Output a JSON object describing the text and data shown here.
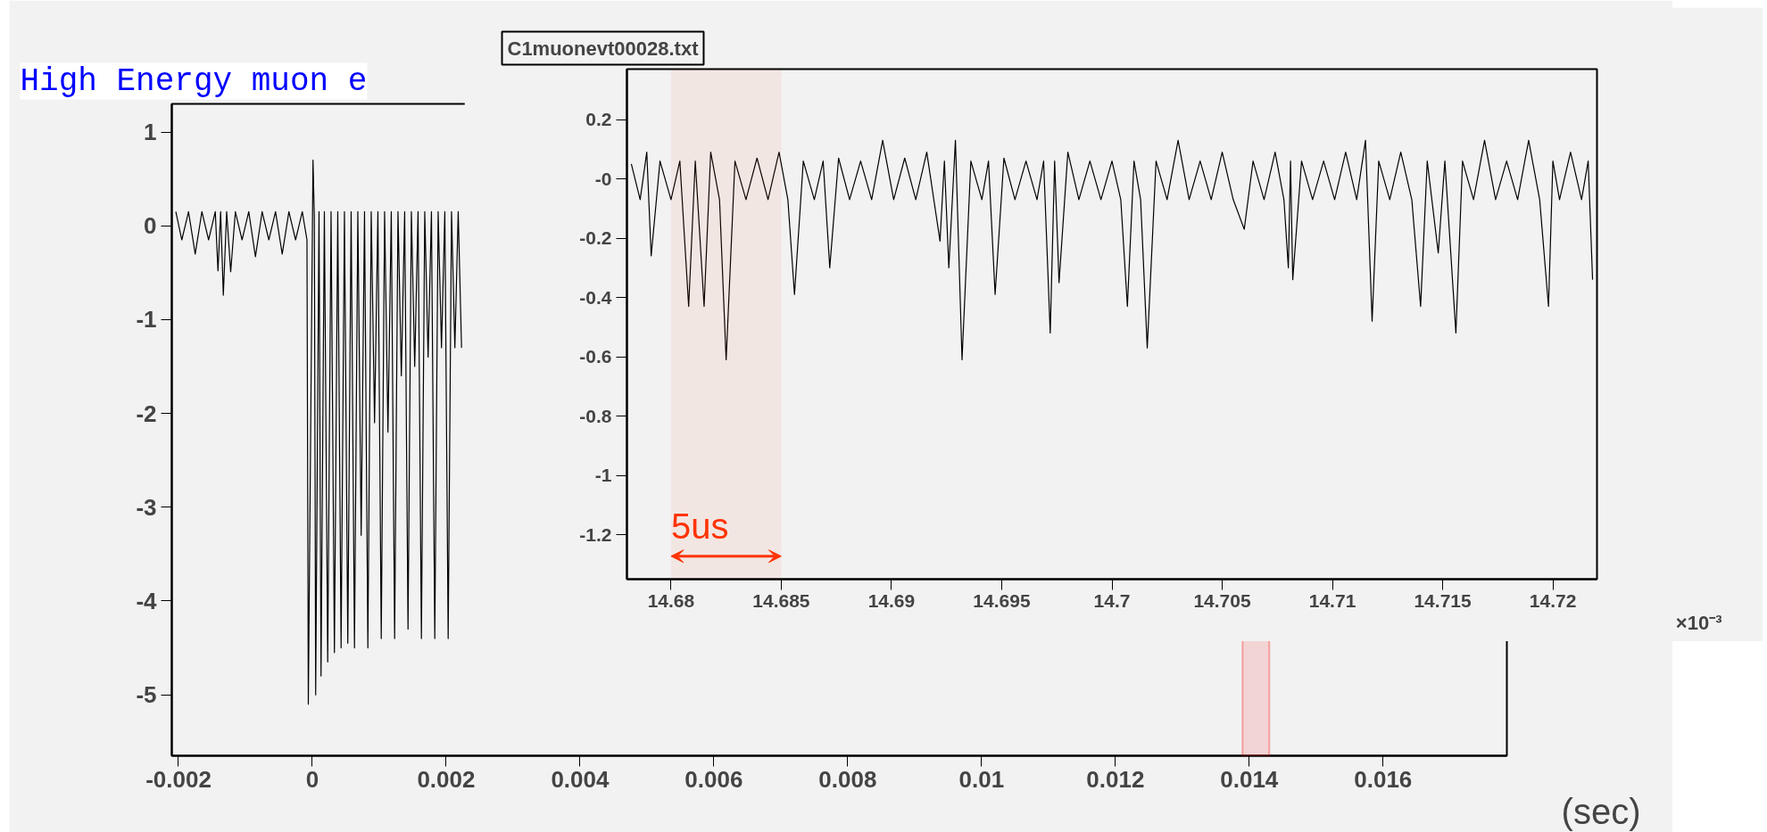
{
  "chart_data": [
    {
      "type": "line",
      "title": "High Energy muon e",
      "xlabel": "(sec)",
      "grid": false,
      "xlim": [
        -0.0021,
        0.01785
      ],
      "ylim": [
        -5.65,
        1.3
      ],
      "xticks": [
        {
          "value": -0.002,
          "label": "-0.002"
        },
        0,
        {
          "value": 0.002,
          "label": "0.002"
        },
        {
          "value": 0.004,
          "label": "0.004"
        },
        {
          "value": 0.006,
          "label": "0.006"
        },
        {
          "value": 0.008,
          "label": "0.008"
        },
        {
          "value": 0.01,
          "label": "0.01"
        },
        {
          "value": 0.012,
          "label": "0.012"
        },
        {
          "value": 0.014,
          "label": "0.014"
        },
        {
          "value": 0.016,
          "label": "0.016"
        }
      ],
      "yticks": [
        1,
        0,
        -1,
        -2,
        -3,
        -4,
        -5
      ],
      "bands": [
        {
          "axis": "x",
          "from": 0.0139,
          "to": 0.0143,
          "color": "#ff0000"
        }
      ],
      "series": [
        {
          "color": "#000000",
          "x": [
            -0.00204,
            -0.00195,
            -0.00185,
            -0.00175,
            -0.00165,
            -0.00155,
            -0.00145,
            -0.00141,
            -0.00137,
            -0.00133,
            -0.00128,
            -0.00122,
            -0.00115,
            -0.00105,
            -0.00095,
            -0.00085,
            -0.00075,
            -0.00065,
            -0.00055,
            -0.00045,
            -0.00035,
            -0.00025,
            -0.00015,
            -8e-05,
            -6e-05,
            1e-05,
            3e-05,
            5e-05,
            0.0001,
            0.00013,
            0.00018,
            0.00023,
            0.00028,
            0.00033,
            0.00038,
            0.00043,
            0.00048,
            0.00053,
            0.00058,
            0.00063,
            0.00068,
            0.00073,
            0.00078,
            0.00083,
            0.00088,
            0.00093,
            0.00098,
            0.00103,
            0.00108,
            0.00113,
            0.00118,
            0.00123,
            0.00128,
            0.00133,
            0.00138,
            0.00143,
            0.00148,
            0.00153,
            0.00158,
            0.00163,
            0.00168,
            0.00173,
            0.00178,
            0.00183,
            0.00188,
            0.00193,
            0.00198,
            0.00203,
            0.00208,
            0.00213,
            0.00218,
            0.00223
          ],
          "values": [
            0.15,
            -0.15,
            0.15,
            -0.3,
            0.15,
            -0.15,
            0.15,
            -0.48,
            0.15,
            -0.74,
            0.15,
            -0.49,
            0.15,
            -0.15,
            0.15,
            -0.33,
            0.15,
            -0.15,
            0.15,
            -0.3,
            0.15,
            -0.15,
            0.15,
            -0.15,
            -5.1,
            0.7,
            0.1,
            -5.0,
            0.15,
            -4.8,
            0.15,
            -4.65,
            0.15,
            -4.55,
            0.15,
            -4.5,
            0.15,
            -4.45,
            0.15,
            -4.5,
            0.15,
            -3.3,
            0.15,
            -4.5,
            0.15,
            -2.1,
            0.15,
            -4.4,
            0.15,
            -2.2,
            0.15,
            -4.4,
            0.15,
            -1.6,
            0.15,
            -4.3,
            0.15,
            -1.5,
            0.15,
            -4.4,
            0.15,
            -1.4,
            0.15,
            -4.4,
            0.15,
            -1.3,
            0.15,
            -4.4,
            0.15,
            -1.3,
            0.15,
            -1.3
          ]
        }
      ]
    },
    {
      "type": "line",
      "title": "C1muonevt00028.txt",
      "xlabel": "×10⁻³",
      "grid": false,
      "xlim": [
        14.678,
        14.722
      ],
      "ylim": [
        -1.35,
        0.37
      ],
      "xticks": [
        {
          "value": 14.68,
          "label": "14.68"
        },
        {
          "value": 14.685,
          "label": "14.685"
        },
        {
          "value": 14.69,
          "label": "14.69"
        },
        {
          "value": 14.695,
          "label": "14.695"
        },
        {
          "value": 14.7,
          "label": "14.7"
        },
        {
          "value": 14.705,
          "label": "14.705"
        },
        {
          "value": 14.71,
          "label": "14.71"
        },
        {
          "value": 14.715,
          "label": "14.715"
        },
        {
          "value": 14.72,
          "label": "14.72"
        }
      ],
      "yticks": [
        0.2,
        {
          "value": 0,
          "label": "-0"
        },
        -0.2,
        -0.4,
        -0.6,
        -0.8,
        -1,
        -1.2
      ],
      "bands": [
        {
          "axis": "x",
          "from": 14.68,
          "to": 14.685,
          "label": "5us",
          "color": "#ff3300"
        }
      ],
      "series": [
        {
          "color": "#000000",
          "x": [
            14.6782,
            14.6786,
            14.6789,
            14.6791,
            14.6795,
            14.68,
            14.6804,
            14.6808,
            14.6811,
            14.6815,
            14.6818,
            14.6822,
            14.6825,
            14.6829,
            14.6834,
            14.6839,
            14.6844,
            14.6849,
            14.6853,
            14.6856,
            14.686,
            14.6865,
            14.6869,
            14.6872,
            14.6876,
            14.6881,
            14.6886,
            14.6891,
            14.6896,
            14.6901,
            14.6906,
            14.6911,
            14.6916,
            14.6922,
            14.6924,
            14.6926,
            14.6929,
            14.6932,
            14.6936,
            14.6941,
            14.6944,
            14.6947,
            14.6951,
            14.6956,
            14.6961,
            14.6966,
            14.6969,
            14.6972,
            14.6974,
            14.6976,
            14.698,
            14.6985,
            14.699,
            14.6995,
            14.7,
            14.7004,
            14.7007,
            14.701,
            14.7013,
            14.7016,
            14.702,
            14.7025,
            14.703,
            14.7035,
            14.704,
            14.7045,
            14.705,
            14.7055,
            14.706,
            14.7064,
            14.7069,
            14.7074,
            14.7078,
            14.708,
            14.7081,
            14.7082,
            14.7086,
            14.7091,
            14.7096,
            14.7101,
            14.7106,
            14.7111,
            14.7115,
            14.7118,
            14.7121,
            14.7126,
            14.7131,
            14.7136,
            14.714,
            14.7143,
            14.7148,
            14.7151,
            14.7156,
            14.7159,
            14.7164,
            14.7169,
            14.7174,
            14.7179,
            14.7184,
            14.7189,
            14.7194,
            14.7198,
            14.72,
            14.7203,
            14.7208,
            14.7213,
            14.7216,
            14.7218
          ],
          "values": [
            0.05,
            -0.07,
            0.09,
            -0.26,
            0.06,
            -0.07,
            0.06,
            -0.43,
            0.06,
            -0.43,
            0.09,
            -0.07,
            -0.61,
            0.06,
            -0.07,
            0.07,
            -0.07,
            0.09,
            -0.07,
            -0.39,
            0.06,
            -0.07,
            0.06,
            -0.3,
            0.07,
            -0.07,
            0.06,
            -0.07,
            0.13,
            -0.07,
            0.07,
            -0.07,
            0.09,
            -0.21,
            0.06,
            -0.3,
            0.13,
            -0.61,
            0.06,
            -0.07,
            0.06,
            -0.39,
            0.07,
            -0.07,
            0.06,
            -0.07,
            0.06,
            -0.52,
            0.06,
            -0.35,
            0.09,
            -0.07,
            0.06,
            -0.07,
            0.06,
            -0.07,
            -0.43,
            0.06,
            -0.07,
            -0.57,
            0.06,
            -0.07,
            0.13,
            -0.07,
            0.06,
            -0.07,
            0.09,
            -0.07,
            -0.17,
            0.06,
            -0.07,
            0.09,
            -0.07,
            -0.3,
            0.06,
            -0.34,
            0.06,
            -0.07,
            0.06,
            -0.07,
            0.09,
            -0.07,
            0.13,
            -0.48,
            0.06,
            -0.07,
            0.09,
            -0.07,
            -0.43,
            0.06,
            -0.25,
            0.06,
            -0.52,
            0.06,
            -0.07,
            0.13,
            -0.07,
            0.06,
            -0.07,
            0.13,
            -0.07,
            -0.43,
            0.06,
            -0.07,
            0.09,
            -0.07,
            0.06,
            -0.34
          ]
        }
      ]
    }
  ]
}
